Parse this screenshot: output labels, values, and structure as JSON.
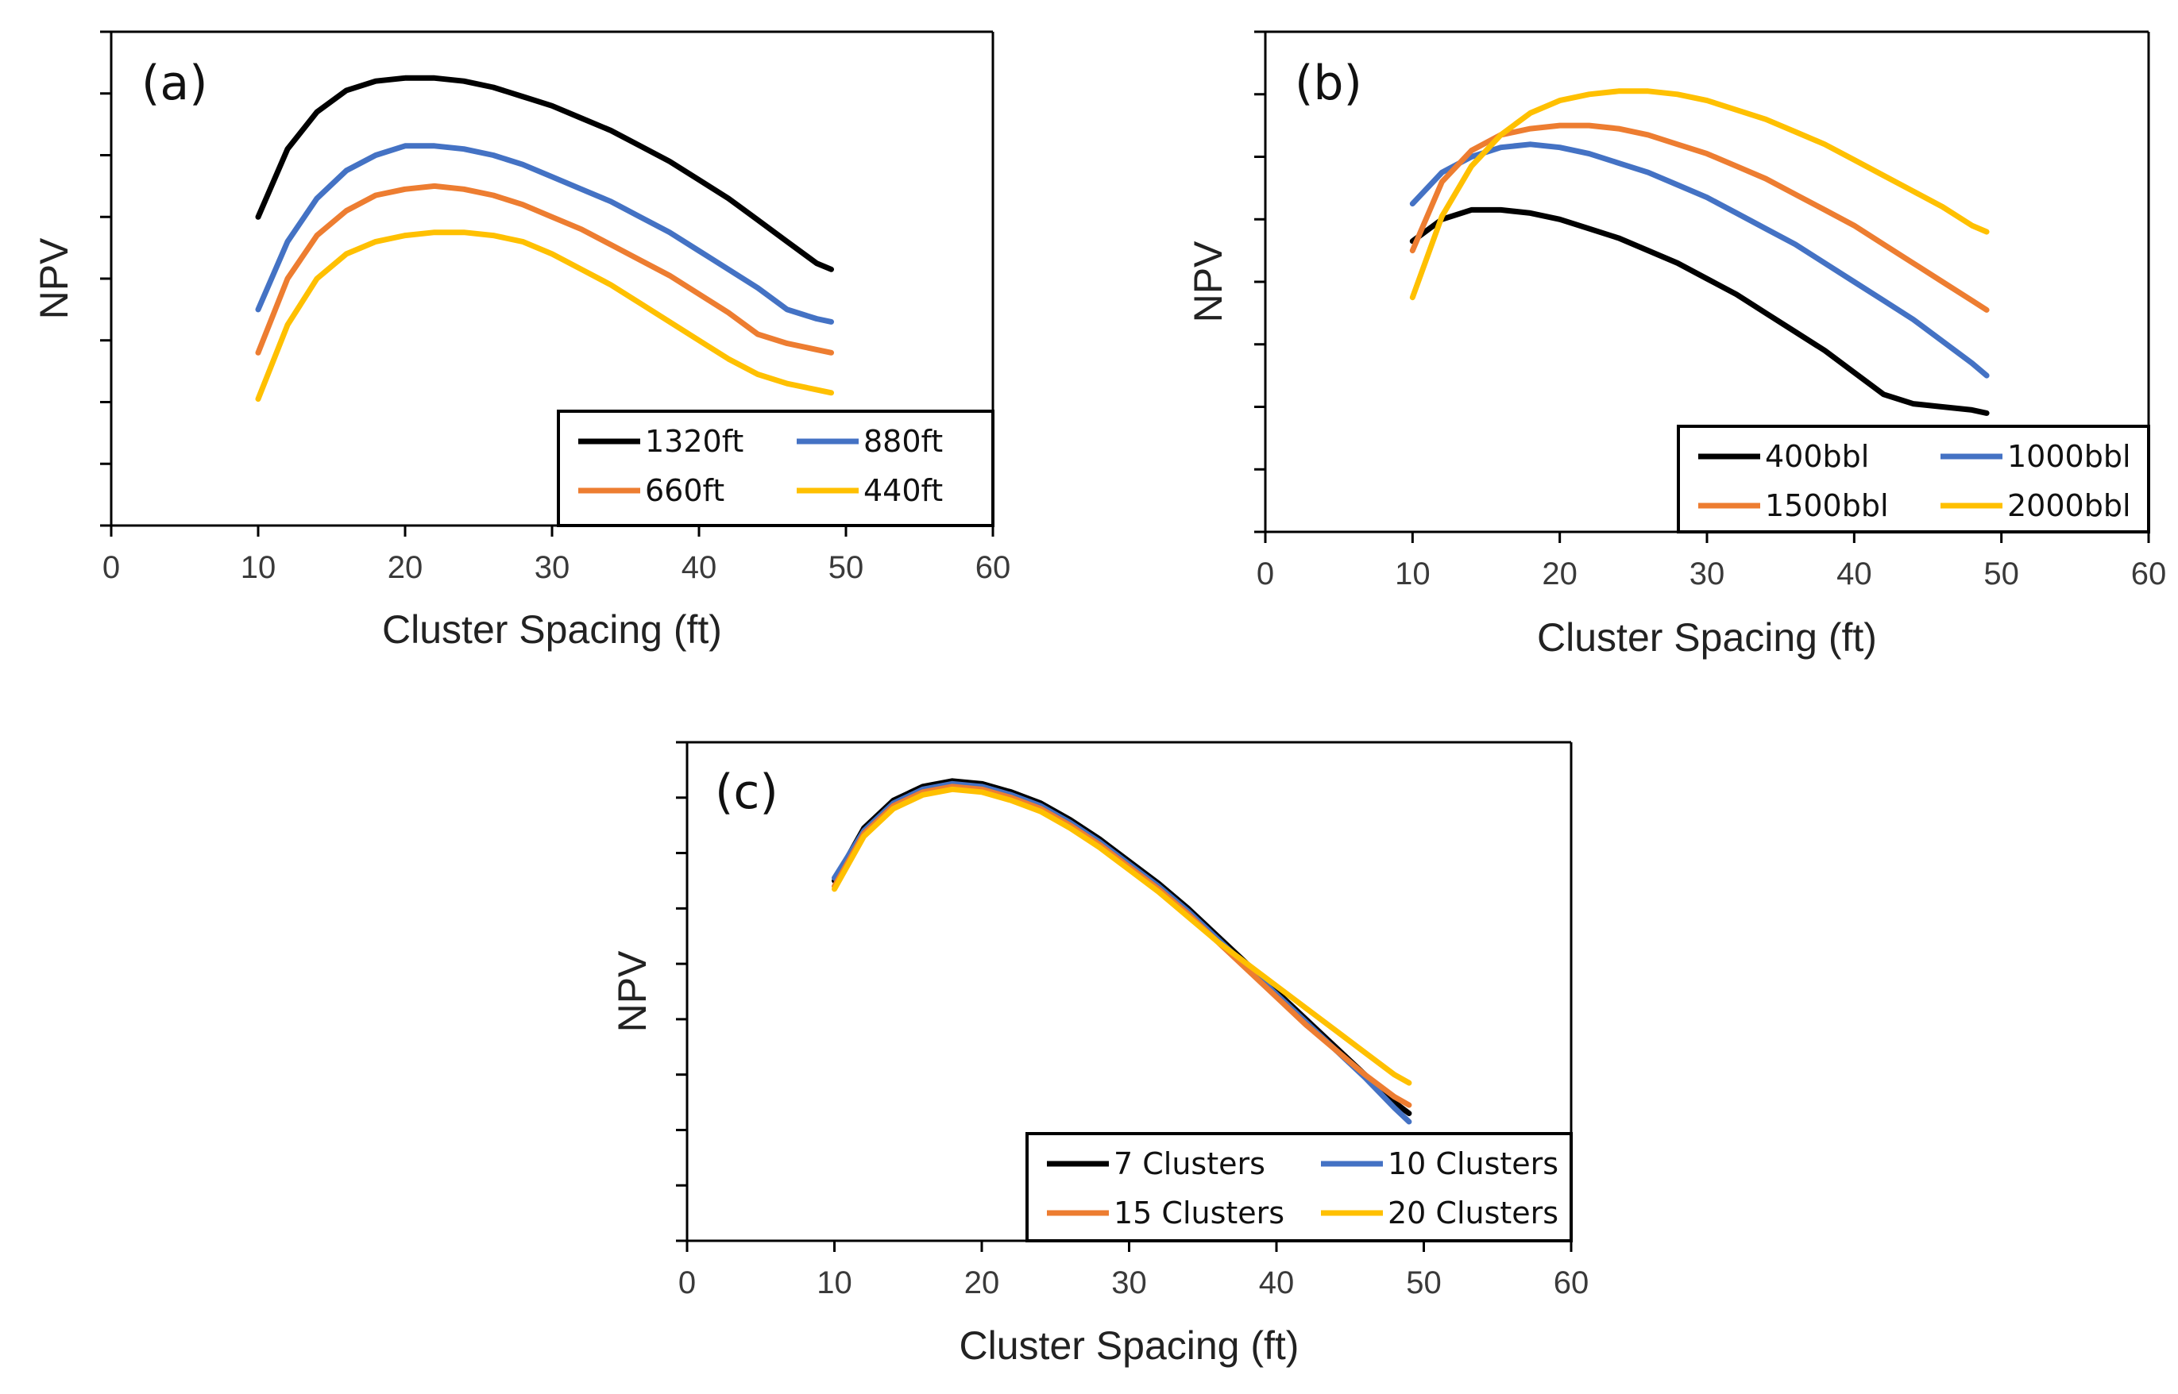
{
  "chart_data": [
    {
      "type": "line",
      "panel_label": "(a)",
      "xlabel": "Cluster Spacing (ft)",
      "ylabel": "NPV",
      "xlim": [
        0,
        60
      ],
      "xticks": [
        "0",
        "10",
        "20",
        "30",
        "40",
        "50",
        "60"
      ],
      "yticks_count": 8,
      "ylim": [
        0,
        8
      ],
      "legend_position": "bottom-right",
      "x": [
        10,
        12,
        14,
        16,
        18,
        20,
        22,
        24,
        26,
        28,
        30,
        32,
        34,
        36,
        38,
        40,
        42,
        44,
        46,
        48,
        49
      ],
      "series": [
        {
          "name": "1320ft",
          "color": "#000000",
          "values": [
            5.0,
            6.1,
            6.7,
            7.05,
            7.2,
            7.25,
            7.25,
            7.2,
            7.1,
            6.95,
            6.8,
            6.6,
            6.4,
            6.15,
            5.9,
            5.6,
            5.3,
            4.95,
            4.6,
            4.25,
            4.15
          ]
        },
        {
          "name": "880ft",
          "color": "#4472C4",
          "values": [
            3.5,
            4.6,
            5.3,
            5.75,
            6.0,
            6.15,
            6.15,
            6.1,
            6.0,
            5.85,
            5.65,
            5.45,
            5.25,
            5.0,
            4.75,
            4.45,
            4.15,
            3.85,
            3.5,
            3.35,
            3.3
          ]
        },
        {
          "name": "660ft",
          "color": "#ED7D31",
          "values": [
            2.8,
            4.0,
            4.7,
            5.1,
            5.35,
            5.45,
            5.5,
            5.45,
            5.35,
            5.2,
            5.0,
            4.8,
            4.55,
            4.3,
            4.05,
            3.75,
            3.45,
            3.1,
            2.95,
            2.85,
            2.8
          ]
        },
        {
          "name": "440ft",
          "color": "#FFC000",
          "values": [
            2.05,
            3.25,
            4.0,
            4.4,
            4.6,
            4.7,
            4.75,
            4.75,
            4.7,
            4.6,
            4.4,
            4.15,
            3.9,
            3.6,
            3.3,
            3.0,
            2.7,
            2.45,
            2.3,
            2.2,
            2.15
          ]
        }
      ]
    },
    {
      "type": "line",
      "panel_label": "(b)",
      "xlabel": "Cluster Spacing (ft)",
      "ylabel": "NPV",
      "xlim": [
        0,
        60
      ],
      "xticks": [
        "0",
        "10",
        "20",
        "30",
        "40",
        "50",
        "60"
      ],
      "yticks_count": 8,
      "ylim": [
        0,
        8
      ],
      "legend_position": "bottom-right",
      "x": [
        10,
        12,
        14,
        16,
        18,
        20,
        22,
        24,
        26,
        28,
        30,
        32,
        34,
        36,
        38,
        40,
        42,
        44,
        46,
        48,
        49
      ],
      "series": [
        {
          "name": "400bbl",
          "color": "#000000",
          "values": [
            4.65,
            5.0,
            5.15,
            5.15,
            5.1,
            5.0,
            4.85,
            4.7,
            4.5,
            4.3,
            4.05,
            3.8,
            3.5,
            3.2,
            2.9,
            2.55,
            2.2,
            2.05,
            2.0,
            1.95,
            1.9
          ]
        },
        {
          "name": "1000bbl",
          "color": "#4472C4",
          "values": [
            5.25,
            5.75,
            6.0,
            6.15,
            6.2,
            6.15,
            6.05,
            5.9,
            5.75,
            5.55,
            5.35,
            5.1,
            4.85,
            4.6,
            4.3,
            4.0,
            3.7,
            3.4,
            3.05,
            2.7,
            2.5
          ]
        },
        {
          "name": "1500bbl",
          "color": "#ED7D31",
          "values": [
            4.5,
            5.6,
            6.1,
            6.35,
            6.45,
            6.5,
            6.5,
            6.45,
            6.35,
            6.2,
            6.05,
            5.85,
            5.65,
            5.4,
            5.15,
            4.9,
            4.6,
            4.3,
            4.0,
            3.7,
            3.55
          ]
        },
        {
          "name": "2000bbl",
          "color": "#FFC000",
          "values": [
            3.75,
            5.05,
            5.85,
            6.35,
            6.7,
            6.9,
            7.0,
            7.05,
            7.05,
            7.0,
            6.9,
            6.75,
            6.6,
            6.4,
            6.2,
            5.95,
            5.7,
            5.45,
            5.2,
            4.9,
            4.8
          ]
        }
      ]
    },
    {
      "type": "line",
      "panel_label": "(c)",
      "xlabel": "Cluster Spacing (ft)",
      "ylabel": "NPV",
      "xlim": [
        0,
        60
      ],
      "xticks": [
        "0",
        "10",
        "20",
        "30",
        "40",
        "50",
        "60"
      ],
      "yticks_count": 9,
      "ylim": [
        0,
        9
      ],
      "legend_position": "bottom-right",
      "x": [
        10,
        12,
        14,
        16,
        18,
        20,
        22,
        24,
        26,
        28,
        30,
        32,
        34,
        36,
        38,
        40,
        42,
        44,
        46,
        48,
        49
      ],
      "series": [
        {
          "name": "7 Clusters",
          "color": "#000000",
          "values": [
            6.5,
            7.45,
            7.95,
            8.2,
            8.3,
            8.25,
            8.1,
            7.9,
            7.6,
            7.25,
            6.85,
            6.45,
            6.0,
            5.5,
            5.0,
            4.5,
            4.0,
            3.5,
            3.0,
            2.5,
            2.3
          ]
        },
        {
          "name": "10 Clusters",
          "color": "#4472C4",
          "values": [
            6.55,
            7.4,
            7.9,
            8.15,
            8.25,
            8.2,
            8.05,
            7.85,
            7.55,
            7.2,
            6.8,
            6.4,
            5.95,
            5.45,
            4.95,
            4.45,
            3.95,
            3.45,
            2.95,
            2.4,
            2.15
          ]
        },
        {
          "name": "15 Clusters",
          "color": "#ED7D31",
          "values": [
            6.4,
            7.35,
            7.85,
            8.1,
            8.2,
            8.15,
            8.0,
            7.8,
            7.5,
            7.15,
            6.75,
            6.35,
            5.9,
            5.4,
            4.9,
            4.4,
            3.9,
            3.45,
            3.0,
            2.6,
            2.45
          ]
        },
        {
          "name": "20 Clusters",
          "color": "#FFC000",
          "values": [
            6.35,
            7.3,
            7.8,
            8.05,
            8.15,
            8.1,
            7.95,
            7.75,
            7.45,
            7.1,
            6.7,
            6.3,
            5.85,
            5.4,
            5.0,
            4.6,
            4.2,
            3.8,
            3.4,
            3.0,
            2.85
          ]
        }
      ]
    }
  ]
}
